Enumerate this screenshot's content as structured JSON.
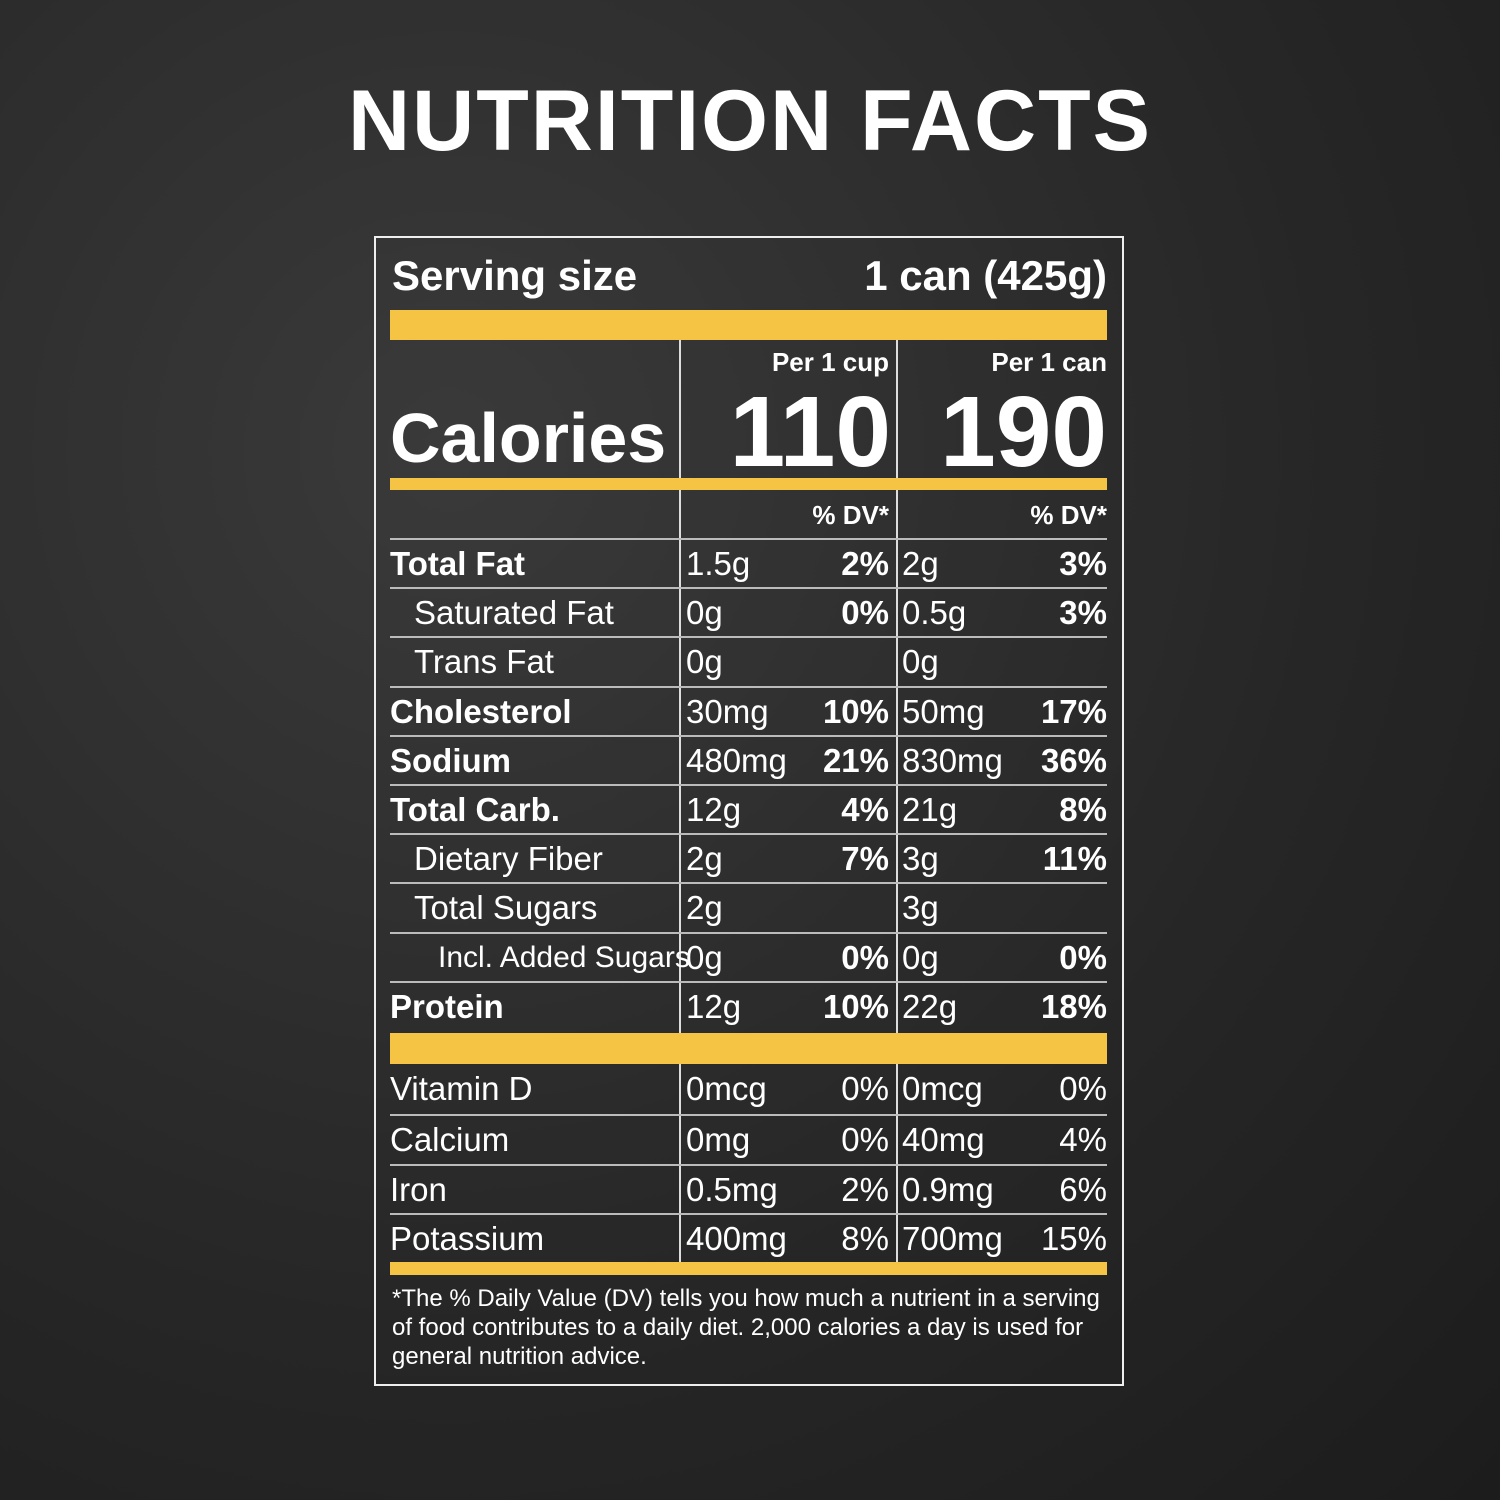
{
  "title": "NUTRITION FACTS",
  "serving": {
    "label": "Serving size",
    "value": "1 can (425g)"
  },
  "calories": {
    "label": "Calories",
    "columns": [
      {
        "header": "Per 1 cup",
        "value": "110"
      },
      {
        "header": "Per 1 can",
        "value": "190"
      }
    ]
  },
  "dv_headers": [
    "% DV*",
    "% DV*"
  ],
  "nutrients": [
    {
      "name": "Total Fat",
      "cells": [
        "1.5g",
        "2%",
        "2g",
        "3%"
      ],
      "sub": [
        {
          "name": "Saturated Fat",
          "cells": [
            "0g",
            "0%",
            "0.5g",
            "3%"
          ]
        },
        {
          "name": "Trans Fat",
          "cells": [
            "0g",
            null,
            "0g",
            null
          ]
        }
      ]
    },
    {
      "name": "Cholesterol",
      "cells": [
        "30mg",
        "10%",
        "50mg",
        "17%"
      ]
    },
    {
      "name": "Sodium",
      "cells": [
        "480mg",
        "21%",
        "830mg",
        "36%"
      ]
    },
    {
      "name": "Total Carb.",
      "cells": [
        "12g",
        "4%",
        "21g",
        "8%"
      ],
      "sub": [
        {
          "name": "Dietary Fiber",
          "cells": [
            "2g",
            "7%",
            "3g",
            "11%"
          ]
        },
        {
          "name": "Total Sugars",
          "cells": [
            "2g",
            null,
            "3g",
            null
          ],
          "sub": [
            {
              "name": "Incl. Added Sugars",
              "cells": [
                "0g",
                "0%",
                "0g",
                "0%"
              ]
            }
          ]
        }
      ]
    },
    {
      "name": "Protein",
      "cells": [
        "12g",
        "10%",
        "22g",
        "18%"
      ]
    }
  ],
  "vitamins": [
    {
      "name": "Vitamin D",
      "cells": [
        "0mcg",
        "0%",
        "0mcg",
        "0%"
      ]
    },
    {
      "name": "Calcium",
      "cells": [
        "0mg",
        "0%",
        "40mg",
        "4%"
      ]
    },
    {
      "name": "Iron",
      "cells": [
        "0.5mg",
        "2%",
        "0.9mg",
        "6%"
      ]
    },
    {
      "name": "Potassium",
      "cells": [
        "400mg",
        "8%",
        "700mg",
        "15%"
      ]
    }
  ],
  "footnote": "*The % Daily Value (DV) tells you how much a nutrient in a serving of food contributes to a daily diet. 2,000 calories a day is used for general nutrition advice."
}
